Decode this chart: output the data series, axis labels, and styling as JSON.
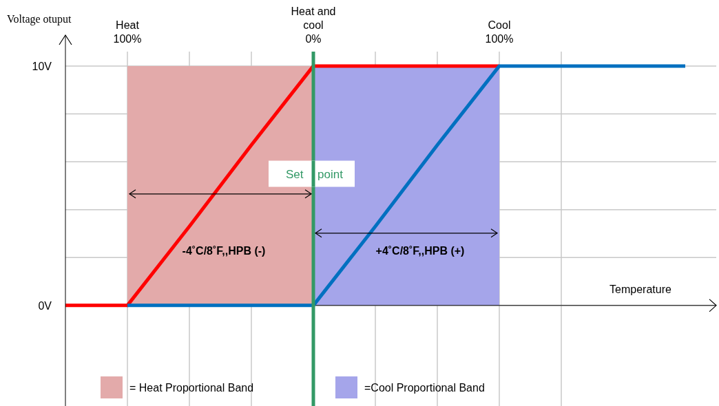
{
  "chart_data": {
    "type": "line",
    "ylabel": "Voltage otuput",
    "xlabel": "Temperature",
    "categories": [
      null,
      "Heat\n100%",
      null,
      null,
      "Heat and\ncool\n0%",
      null,
      null,
      "Cool\n100%",
      null,
      null,
      null
    ],
    "ylim": [
      -4.2,
      10.6
    ],
    "yticks": [
      {
        "value": 0,
        "label": "0V"
      },
      {
        "value": 2,
        "label": null
      },
      {
        "value": 4,
        "label": null
      },
      {
        "value": 6,
        "label": null
      },
      {
        "value": 8,
        "label": null
      },
      {
        "value": 10,
        "label": "10V"
      }
    ],
    "series": [
      {
        "color": "#ff0000",
        "values": [
          0,
          0,
          3.3,
          6.7,
          10,
          10,
          10,
          10,
          null,
          null,
          null
        ]
      },
      {
        "color": "#0070c0",
        "values": [
          null,
          0,
          0,
          0,
          0,
          3.3,
          6.7,
          10,
          10,
          10,
          10
        ]
      }
    ],
    "ref_lines": [
      {
        "axis": "x",
        "value": "Heat and\ncool\n0%",
        "label": "Set point",
        "color": "#339966"
      }
    ],
    "bands": [
      {
        "axis": "x",
        "from": "Heat\n100%",
        "to": "Heat and\ncool\n0%",
        "label": "= Heat Proportional Band",
        "color": "#e3aaaa"
      },
      {
        "axis": "x",
        "from": "Heat and\ncool\n0%",
        "to": "Cool\n100%",
        "label": "=Cool Proportional Band",
        "color": "#a5a5ea"
      }
    ],
    "annotations": [
      "-4˚C/8˚F,,HPB (-)",
      "+4˚C/8˚F,,HPB (+)"
    ],
    "grid": true,
    "legend": "bottom",
    "marker": "none",
    "line_style": "solid"
  }
}
